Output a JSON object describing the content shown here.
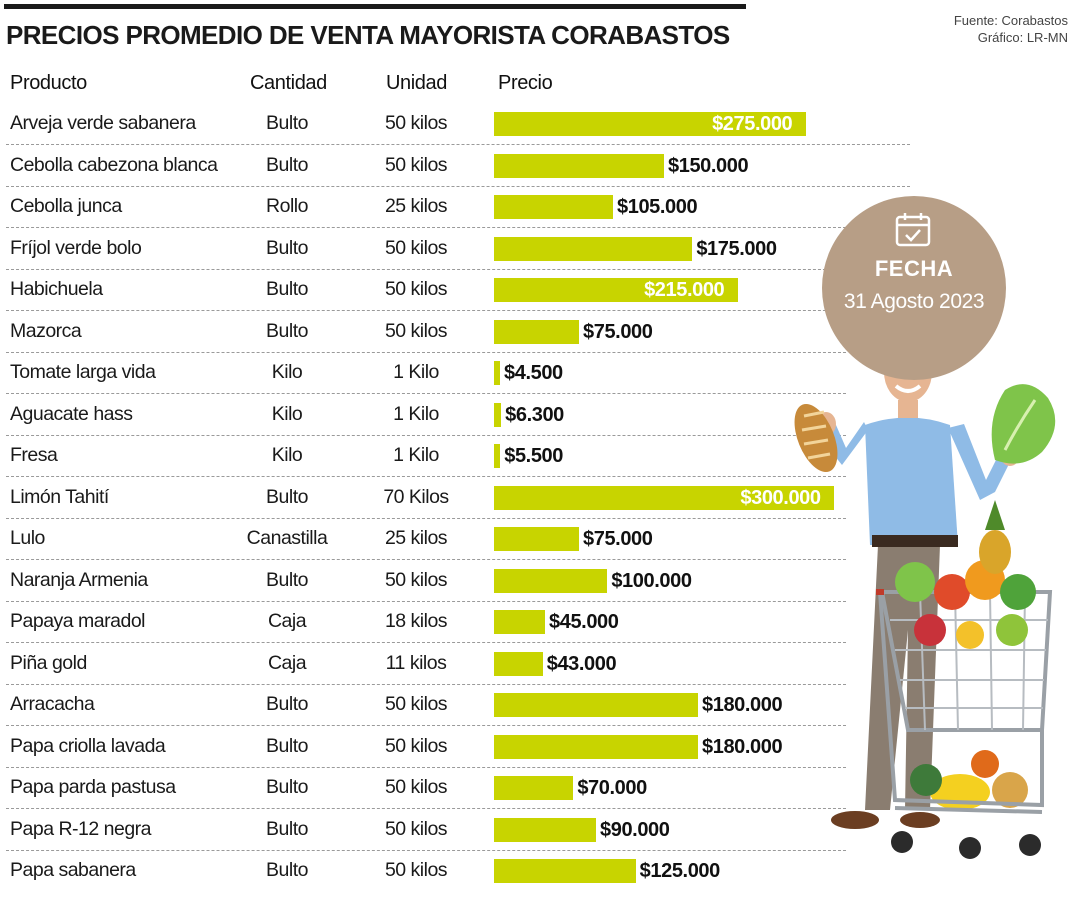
{
  "header": {
    "title": "PRECIOS PROMEDIO DE VENTA MAYORISTA CORABASTOS",
    "source_line1": "Fuente: Corabastos",
    "source_line2": "Gráfico: LR-MN"
  },
  "columns": {
    "producto": "Producto",
    "cantidad": "Cantidad",
    "unidad": "Unidad",
    "precio": "Precio"
  },
  "badge": {
    "label": "FECHA",
    "date": "31 Agosto 2023",
    "icon": "calendar-check-icon"
  },
  "illustration": "man-with-shopping-cart-of-vegetables",
  "colors": {
    "bar": "#c8d400",
    "badge": "#b79e86"
  },
  "chart_data": {
    "type": "bar",
    "orientation": "horizontal",
    "title": "PRECIOS PROMEDIO DE VENTA MAYORISTA CORABASTOS",
    "categories": [
      "Arveja verde sabanera",
      "Cebolla cabezona blanca",
      "Cebolla junca",
      "Fríjol verde bolo",
      "Habichuela",
      "Mazorca",
      "Tomate larga vida",
      "Aguacate hass",
      "Fresa",
      "Limón Tahití",
      "Lulo",
      "Naranja Armenia",
      "Papaya maradol",
      "Piña gold",
      "Arracacha",
      "Papa criolla lavada",
      "Papa parda pastusa",
      "Papa R-12 negra",
      "Papa sabanera"
    ],
    "cantidad": [
      "Bulto",
      "Bulto",
      "Rollo",
      "Bulto",
      "Bulto",
      "Bulto",
      "Kilo",
      "Kilo",
      "Kilo",
      "Bulto",
      "Canastilla",
      "Bulto",
      "Caja",
      "Caja",
      "Bulto",
      "Bulto",
      "Bulto",
      "Bulto",
      "Bulto"
    ],
    "unidad": [
      "50 kilos",
      "50 kilos",
      "25 kilos",
      "50 kilos",
      "50 kilos",
      "50 kilos",
      "1 Kilo",
      "1 Kilo",
      "1 Kilo",
      "70 Kilos",
      "25 kilos",
      "50 kilos",
      "18 kilos",
      "11 kilos",
      "50 kilos",
      "50 kilos",
      "50 kilos",
      "50 kilos",
      "50 kilos"
    ],
    "values": [
      275000,
      150000,
      105000,
      175000,
      215000,
      75000,
      4500,
      6300,
      5500,
      300000,
      75000,
      100000,
      45000,
      43000,
      180000,
      180000,
      70000,
      90000,
      125000
    ],
    "labels": [
      "$275.000",
      "$150.000",
      "$105.000",
      "$175.000",
      "$215.000",
      "$75.000",
      "$4.500",
      "$6.300",
      "$5.500",
      "$300.000",
      "$75.000",
      "$100.000",
      "$45.000",
      "$43.000",
      "$180.000",
      "$180.000",
      "$70.000",
      "$90.000",
      "$125.000"
    ],
    "xlim": [
      0,
      300000
    ],
    "grid": false,
    "legend": "none"
  }
}
